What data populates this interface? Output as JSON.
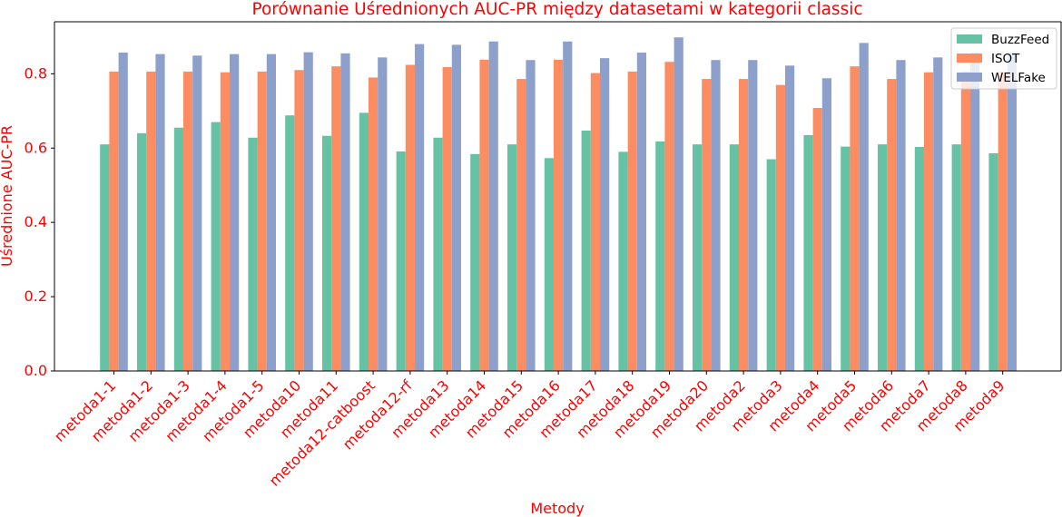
{
  "chart_data": {
    "type": "bar",
    "title": "Porównanie Uśrednionych AUC-PR między datasetami w kategorii classic",
    "xlabel": "Metody",
    "ylabel": "Uśrednione AUC-PR",
    "ylim": [
      0,
      0.94
    ],
    "yticks": [
      "0.0",
      "0.2",
      "0.4",
      "0.6",
      "0.8"
    ],
    "grid": false,
    "legend_position": "top-right",
    "text_color": "#ff0000",
    "categories": [
      "metoda1-1",
      "metoda1-2",
      "metoda1-3",
      "metoda1-4",
      "metoda1-5",
      "metoda10",
      "metoda11",
      "metoda12-catboost",
      "metoda12-rf",
      "metoda13",
      "metoda14",
      "metoda15",
      "metoda16",
      "metoda17",
      "metoda18",
      "metoda19",
      "metoda20",
      "metoda2",
      "metoda3",
      "metoda4",
      "metoda5",
      "metoda6",
      "metoda7",
      "metoda8",
      "metoda9"
    ],
    "series": [
      {
        "name": "BuzzFeed",
        "color": "#66c2a5",
        "values": [
          0.61,
          0.64,
          0.655,
          0.67,
          0.628,
          0.688,
          0.633,
          0.695,
          0.591,
          0.628,
          0.584,
          0.61,
          0.573,
          0.647,
          0.59,
          0.618,
          0.61,
          0.61,
          0.57,
          0.635,
          0.604,
          0.61,
          0.603,
          0.61,
          0.586
        ]
      },
      {
        "name": "ISOT",
        "color": "#fc8d62",
        "values": [
          0.806,
          0.806,
          0.806,
          0.804,
          0.806,
          0.81,
          0.82,
          0.79,
          0.824,
          0.818,
          0.838,
          0.786,
          0.838,
          0.802,
          0.806,
          0.832,
          0.786,
          0.786,
          0.77,
          0.708,
          0.82,
          0.786,
          0.804,
          0.806,
          0.806
        ]
      },
      {
        "name": "WELFake",
        "color": "#8da0cb",
        "values": [
          0.857,
          0.853,
          0.849,
          0.853,
          0.853,
          0.858,
          0.855,
          0.844,
          0.88,
          0.878,
          0.887,
          0.837,
          0.887,
          0.842,
          0.857,
          0.898,
          0.837,
          0.837,
          0.822,
          0.788,
          0.883,
          0.837,
          0.844,
          0.857,
          0.857
        ]
      }
    ]
  }
}
